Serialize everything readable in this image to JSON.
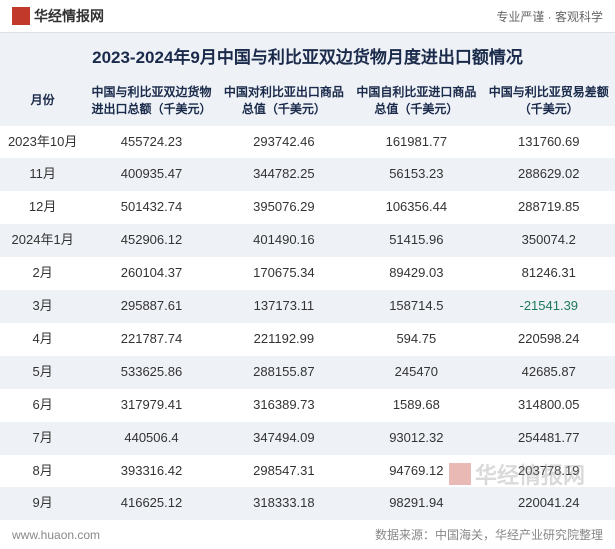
{
  "header": {
    "logo_text": "华经情报网",
    "tagline": "专业严谨 · 客观科学"
  },
  "title": "2023-2024年9月中国与利比亚双边货物月度进出口额情况",
  "table": {
    "columns": [
      "月份",
      "中国与利比亚双边货物进出口总额（千美元）",
      "中国对利比亚出口商品总值（千美元）",
      "中国自利比亚进口商品总值（千美元）",
      "中国与利比亚贸易差额（千美元）"
    ],
    "rows": [
      [
        "2023年10月",
        "455724.23",
        "293742.46",
        "161981.77",
        "131760.69"
      ],
      [
        "11月",
        "400935.47",
        "344782.25",
        "56153.23",
        "288629.02"
      ],
      [
        "12月",
        "501432.74",
        "395076.29",
        "106356.44",
        "288719.85"
      ],
      [
        "2024年1月",
        "452906.12",
        "401490.16",
        "51415.96",
        "350074.2"
      ],
      [
        "2月",
        "260104.37",
        "170675.34",
        "89429.03",
        "81246.31"
      ],
      [
        "3月",
        "295887.61",
        "137173.11",
        "158714.5",
        "-21541.39"
      ],
      [
        "4月",
        "221787.74",
        "221192.99",
        "594.75",
        "220598.24"
      ],
      [
        "5月",
        "533625.86",
        "288155.87",
        "245470",
        "42685.87"
      ],
      [
        "6月",
        "317979.41",
        "316389.73",
        "1589.68",
        "314800.05"
      ],
      [
        "7月",
        "440506.4",
        "347494.09",
        "93012.32",
        "254481.77"
      ],
      [
        "8月",
        "393316.42",
        "298547.31",
        "94769.12",
        "203778.19"
      ],
      [
        "9月",
        "416625.12",
        "318333.18",
        "98291.94",
        "220041.24"
      ]
    ],
    "negative_cells": [
      [
        5,
        4
      ]
    ]
  },
  "footer": {
    "left": "www.huaon.com",
    "right": "数据来源：中国海关，华经产业研究院整理"
  },
  "watermark": "华经情报网",
  "colors": {
    "title_color": "#1a2a4a",
    "header_bg": "#eef1f6",
    "row_odd_bg": "#ffffff",
    "row_even_bg": "#eef1f6",
    "negative_color": "#1e7a5a",
    "logo_color": "#c0392b"
  }
}
